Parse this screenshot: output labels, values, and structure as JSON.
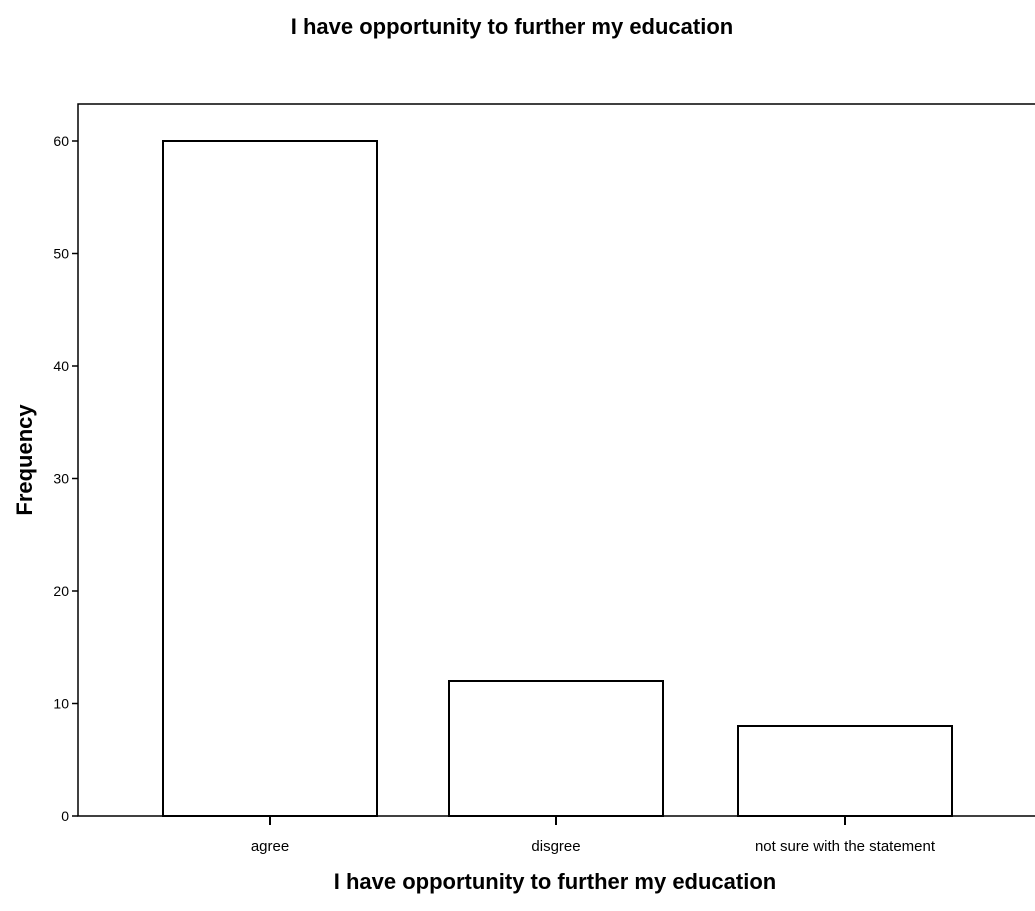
{
  "chart_data": {
    "type": "bar",
    "title": "I have opportunity to further my education",
    "xlabel": "I have opportunity to further my education",
    "ylabel": "Frequency",
    "categories": [
      "agree",
      "disgree",
      "not sure with the statement"
    ],
    "values": [
      60,
      12,
      8
    ],
    "ylim": [
      0,
      60
    ],
    "yticks": [
      0,
      10,
      20,
      30,
      40,
      50,
      60
    ],
    "grid": false,
    "legend": "none",
    "bar_fill": "#ffffff",
    "bar_stroke": "#000000"
  }
}
